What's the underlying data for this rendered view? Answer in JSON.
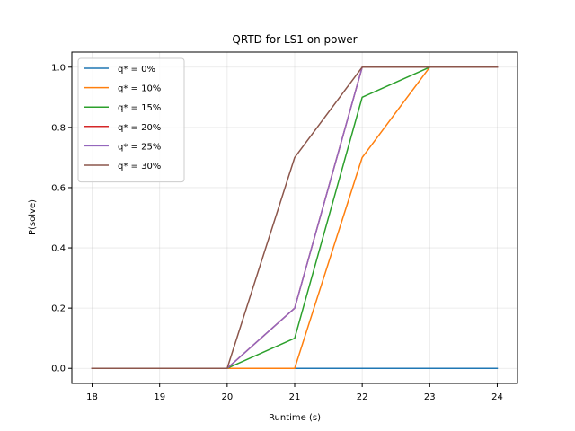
{
  "chart_data": {
    "type": "line",
    "title": "QRTD for LS1 on power",
    "xlabel": "Runtime (s)",
    "ylabel": "P(solve)",
    "xlim": [
      17.7,
      24.3
    ],
    "ylim": [
      -0.05,
      1.05
    ],
    "xticks": [
      "18",
      "19",
      "20",
      "21",
      "22",
      "23",
      "24"
    ],
    "yticks": [
      "0.0",
      "0.2",
      "0.4",
      "0.6",
      "0.8",
      "1.0"
    ],
    "grid": true,
    "legend_position": "top-left",
    "x": [
      18,
      19,
      20,
      21,
      22,
      23,
      24
    ],
    "series": [
      {
        "name": "q* = 0%",
        "color": "#1f77b4",
        "values": [
          0,
          0,
          0,
          0,
          0,
          0,
          0
        ]
      },
      {
        "name": "q* = 10%",
        "color": "#ff7f0e",
        "values": [
          0,
          0,
          0,
          0,
          0.7,
          1.0,
          1.0
        ]
      },
      {
        "name": "q* = 15%",
        "color": "#2ca02c",
        "values": [
          0,
          0,
          0,
          0.1,
          0.9,
          1.0,
          1.0
        ]
      },
      {
        "name": "q* = 20%",
        "color": "#d62728",
        "values": [
          0,
          0,
          0,
          0.2,
          1.0,
          1.0,
          1.0
        ]
      },
      {
        "name": "q* = 25%",
        "color": "#9467bd",
        "values": [
          0,
          0,
          0,
          0.2,
          1.0,
          1.0,
          1.0
        ]
      },
      {
        "name": "q* = 30%",
        "color": "#8c564b",
        "values": [
          0,
          0,
          0,
          0.7,
          1.0,
          1.0,
          1.0
        ]
      }
    ]
  }
}
